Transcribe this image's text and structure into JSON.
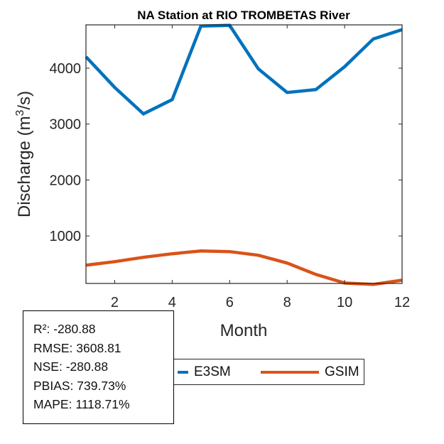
{
  "chart_data": {
    "type": "line",
    "title": "NA  Station at  RIO TROMBETAS  River",
    "xlabel": "Month",
    "ylabel": "Discharge (m³/s)",
    "ylabel_parts": {
      "main": "Discharge (m",
      "sup": "3",
      "end": "/s)"
    },
    "x": [
      1,
      2,
      3,
      4,
      5,
      6,
      7,
      8,
      9,
      10,
      11,
      12
    ],
    "xlim": [
      1,
      12
    ],
    "ylim": [
      150,
      4775
    ],
    "xticks": [
      2,
      4,
      6,
      8,
      10,
      12
    ],
    "xtick_labels": [
      "2",
      "4",
      "6",
      "8",
      "10",
      "12"
    ],
    "yticks": [
      1000,
      2000,
      3000,
      4000
    ],
    "ytick_labels": [
      "1000",
      "2000",
      "3000",
      "4000"
    ],
    "grid": false,
    "legend_position": "bottom",
    "series": [
      {
        "name": "E3SM",
        "color": "#0072BD",
        "values": [
          4204,
          3655,
          3183,
          3438,
          4753,
          4766,
          3987,
          3566,
          3617,
          4026,
          4524,
          4690
        ]
      },
      {
        "name": "GSIM",
        "color": "#D95319",
        "values": [
          476,
          540,
          617,
          681,
          732,
          719,
          655,
          515,
          311,
          157,
          132,
          208
        ]
      }
    ]
  },
  "stats": [
    "R²: -280.88",
    "RMSE: 3608.81",
    "NSE: -280.88",
    "PBIAS: 739.73%",
    "MAPE: 1118.71%"
  ],
  "legend": {
    "items": [
      {
        "label": "E3SM",
        "color": "#0072BD"
      },
      {
        "label": "GSIM",
        "color": "#D95319"
      }
    ]
  }
}
